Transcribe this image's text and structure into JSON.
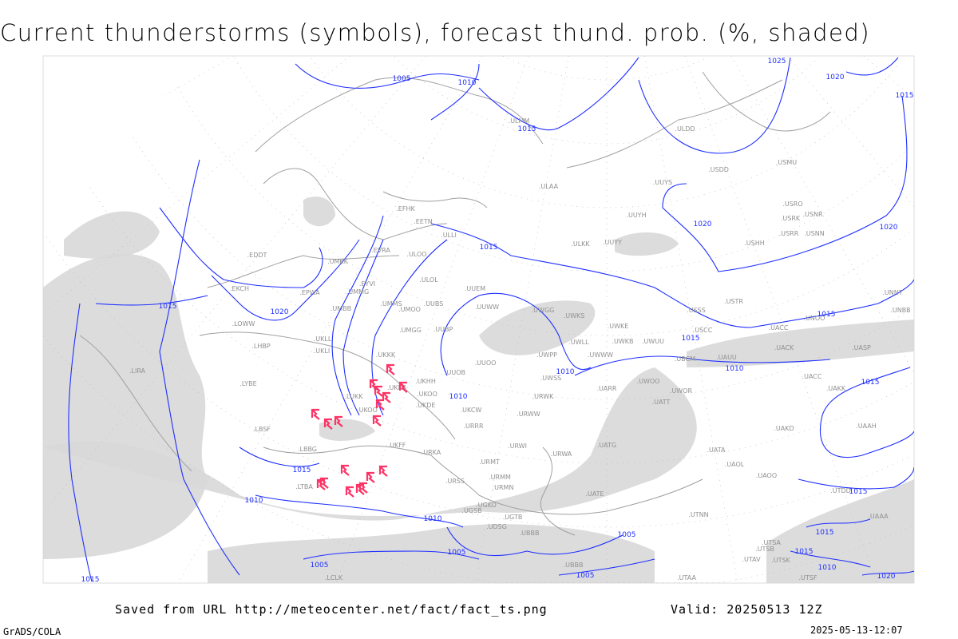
{
  "title": "Current thunderstorms (symbols), forecast thund. prob. (%, shaded)",
  "footer": {
    "source": "Saved from URL http://meteocenter.net/fact/fact_ts.png",
    "valid": "Valid: 20250513 12Z",
    "software": "GrADS/COLA",
    "generated": "2025-05-13-12:07"
  },
  "colors": {
    "isobar": "#1f2fff",
    "coastline": "#a0a0a0",
    "station": "#909090",
    "thunderstorm_symbol": "#ff3366",
    "probability_shading": "#d8d8d8"
  },
  "map": {
    "isobar_labels": [
      "1005",
      "1010",
      "1025",
      "1020",
      "1015",
      "1015",
      "1020",
      "1020",
      "1015",
      "1015",
      "1020",
      "1015",
      "1015",
      "1010",
      "1010",
      "1010",
      "1015",
      "1015",
      "1010",
      "1010",
      "1005",
      "1005",
      "1005",
      "1005",
      "1015",
      "1020",
      "1015",
      "1010",
      "1015",
      "1015"
    ],
    "stations": [
      "ULMM",
      "ULDD",
      "USDD",
      "USMU",
      "ULAA",
      "UUYS",
      "USRO",
      "USRK",
      "USNR",
      "UUYH",
      "USRR",
      "USNN",
      "ULLI",
      "ULKK",
      "UUYY",
      "USHH",
      "EFHK",
      "EETN",
      "EVRA",
      "ULOO",
      "EDDT",
      "UMKK",
      "ULOL",
      "UUEM",
      "EKCH",
      "EPWA",
      "UMMG",
      "EYVI",
      "UUWW",
      "UMMS",
      "UMOO",
      "UUBS",
      "UMBB",
      "UWGG",
      "UWKS",
      "USSS",
      "USTR",
      "UNBB",
      "UNNT",
      "USCC",
      "UWKE",
      "UACC",
      "UNOO",
      "LOWW",
      "UKLL",
      "UMGG",
      "UUBP",
      "UWLL",
      "UWKB",
      "UWUU",
      "UACK",
      "UASP",
      "LHBP",
      "UKLI",
      "UKKK",
      "UWWW",
      "UWPP",
      "UBCM",
      "UAUU",
      "LIRA",
      "UUOO",
      "UUOB",
      "UWSS",
      "UACC",
      "LYBE",
      "UKHH",
      "UKOO",
      "UWOO",
      "UWOR",
      "UKKS",
      "UARR",
      "UATT",
      "UAKK",
      "LUKK",
      "URWK",
      "UKDE",
      "UKOO",
      "UKCW",
      "URWW",
      "LBSF",
      "URRR",
      "UAKD",
      "UAAH",
      "LBBG",
      "UKFF",
      "URWI",
      "UATG",
      "UATA",
      "URKA",
      "URMT",
      "URWA",
      "UAOL",
      "URMM",
      "UAOO",
      "URSS",
      "LTBA",
      "URMN",
      "UTDD",
      "UATE",
      "UGKO",
      "UGSB",
      "UGTB",
      "UDSG",
      "UBBB",
      "UTNN",
      "UTSA",
      "UTSB",
      "UTAV",
      "UTSK",
      "UTAA",
      "LCLK",
      "UTSF",
      "UBBB",
      "UAAA"
    ],
    "thunderstorm_symbol_count": 18,
    "symbol_icon": "thunderstorm-icon"
  }
}
